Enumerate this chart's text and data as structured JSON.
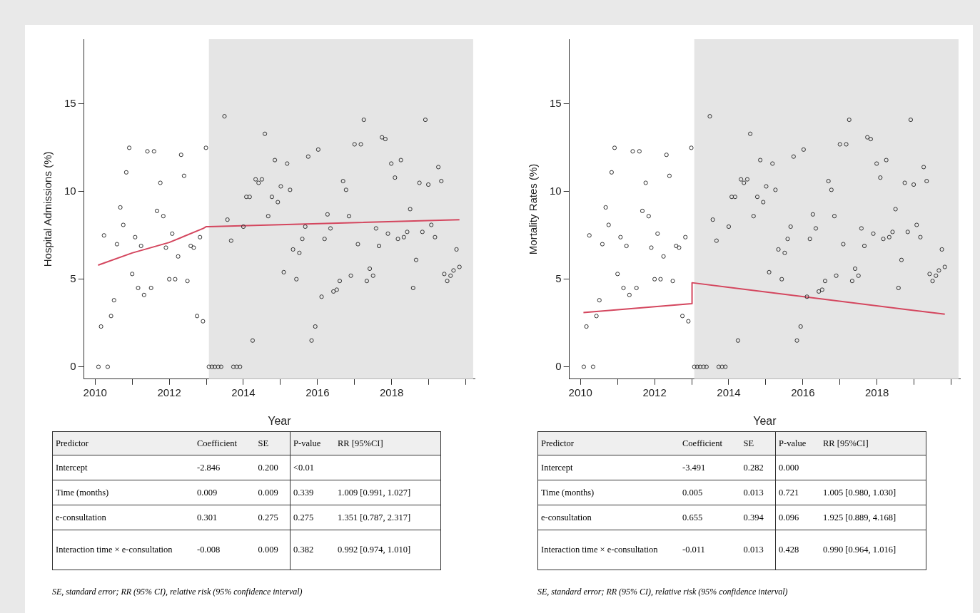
{
  "chart_data": [
    {
      "type": "scatter",
      "xlabel": "Year",
      "ylabel": "Hospital Admissions (%)",
      "xlim": [
        2009.7,
        2020.24
      ],
      "ylim": [
        -0.7,
        18.7
      ],
      "xticks": [
        2010,
        {
          "value": 2011,
          "label": null
        },
        2012,
        {
          "value": 2013,
          "label": null
        },
        2014,
        {
          "value": 2015,
          "label": null
        },
        2016,
        {
          "value": 2017,
          "label": null
        },
        2018,
        {
          "value": 2019,
          "label": null
        },
        {
          "value": 2020,
          "label": null
        }
      ],
      "yticks": [
        0,
        5,
        10,
        15
      ],
      "grid": false,
      "legend": false,
      "bands": [
        {
          "axis": "x",
          "from": 2013.07,
          "to": 2020.2,
          "color": "#e5e5e5"
        }
      ],
      "series": [
        {
          "type": "scatter",
          "marker": "circle",
          "color": "#333333",
          "x": [
            2010.09,
            2010.16,
            2010.24,
            2010.34,
            2010.43,
            2010.51,
            2010.59,
            2010.68,
            2010.76,
            2010.84,
            2010.92,
            2011.0,
            2011.08,
            2011.16,
            2011.24,
            2011.32,
            2011.41,
            2011.51,
            2011.59,
            2011.67,
            2011.76,
            2011.84,
            2011.91,
            2012.0,
            2012.08,
            2012.16,
            2012.24,
            2012.32,
            2012.4,
            2012.49,
            2012.58,
            2012.66,
            2012.75,
            2012.83,
            2012.91,
            2012.99,
            2013.07,
            2013.15,
            2013.23,
            2013.32,
            2013.4,
            2013.49,
            2013.57,
            2013.67,
            2013.73,
            2013.82,
            2013.91,
            2014.0,
            2014.08,
            2014.17,
            2014.25,
            2014.33,
            2014.41,
            2014.5,
            2014.58,
            2014.67,
            2014.77,
            2014.85,
            2014.93,
            2015.01,
            2015.09,
            2015.18,
            2015.26,
            2015.34,
            2015.43,
            2015.51,
            2015.59,
            2015.67,
            2015.75,
            2015.84,
            2015.94,
            2016.02,
            2016.11,
            2016.19,
            2016.27,
            2016.35,
            2016.43,
            2016.52,
            2016.6,
            2016.69,
            2016.77,
            2016.85,
            2016.9,
            2017.0,
            2017.09,
            2017.17,
            2017.25,
            2017.33,
            2017.41,
            2017.5,
            2017.58,
            2017.66,
            2017.74,
            2017.83,
            2017.9,
            2017.99,
            2018.09,
            2018.17,
            2018.25,
            2018.33,
            2018.42,
            2018.5,
            2018.58,
            2018.66,
            2018.75,
            2018.83,
            2018.91,
            2018.99,
            2019.07,
            2019.17,
            2019.26,
            2019.34,
            2019.42,
            2019.5,
            2019.59,
            2019.67,
            2019.75,
            2019.83
          ],
          "values": [
            0,
            2.3,
            7.5,
            0,
            2.9,
            3.8,
            7.0,
            9.1,
            8.1,
            11.1,
            12.5,
            5.3,
            7.4,
            4.5,
            6.9,
            4.1,
            12.3,
            4.5,
            12.3,
            8.9,
            10.5,
            8.6,
            6.8,
            5.0,
            7.6,
            5.0,
            6.3,
            12.1,
            10.9,
            4.9,
            6.9,
            6.8,
            2.9,
            7.4,
            2.6,
            12.5,
            0,
            0,
            0,
            0,
            0,
            14.3,
            8.4,
            7.2,
            0,
            0,
            0,
            8.0,
            9.7,
            9.7,
            1.5,
            10.7,
            10.5,
            10.7,
            13.3,
            8.6,
            9.7,
            11.8,
            9.4,
            10.3,
            5.4,
            11.6,
            10.1,
            6.7,
            5.0,
            6.5,
            7.3,
            8.0,
            12.0,
            1.5,
            2.3,
            12.4,
            4.0,
            7.3,
            8.7,
            7.9,
            4.3,
            4.4,
            4.9,
            10.6,
            10.1,
            8.6,
            5.2,
            12.7,
            7.0,
            12.7,
            14.1,
            4.9,
            5.6,
            5.2,
            7.9,
            6.9,
            13.1,
            13.0,
            7.6,
            11.6,
            10.8,
            7.3,
            11.8,
            7.4,
            7.7,
            9.0,
            4.5,
            6.1,
            10.5,
            7.7,
            14.1,
            10.4,
            8.1,
            7.4,
            11.4,
            10.6,
            5.3,
            4.9,
            5.2,
            5.5,
            6.7,
            5.7
          ]
        },
        {
          "type": "line",
          "marker": "none",
          "color": "#d4465e",
          "x": [
            2010.08,
            2011.0,
            2012.0,
            2012.92,
            2013.0,
            2013.07,
            2019.83
          ],
          "values": [
            5.8,
            6.5,
            7.1,
            7.9,
            8.0,
            8.0,
            8.4
          ]
        }
      ],
      "annotations": [
        "Predictor",
        "Coefficient",
        "SE",
        "P-value",
        "RR [95%CI]",
        "Intercept",
        "-2.846",
        "0.200",
        "<0.01",
        "Time (months)",
        "0.009",
        "0.009",
        "0.339",
        "1.009 [0.991, 1.027]",
        "e-consultation",
        "0.301",
        "0.275",
        "0.275",
        "1.351 [0.787, 2.317]",
        "Interaction time × e-consultation",
        "-0.008",
        "0.009",
        "0.382",
        "0.992 [0.974, 1.010]",
        "SE, standard error; RR (95% CI), relative risk (95% confidence interval)"
      ]
    },
    {
      "type": "scatter",
      "xlabel": "Year",
      "ylabel": "Mortality Rates (%)",
      "xlim": [
        2009.7,
        2020.24
      ],
      "ylim": [
        -0.7,
        18.7
      ],
      "xticks": [
        2010,
        {
          "value": 2011,
          "label": null
        },
        2012,
        {
          "value": 2013,
          "label": null
        },
        2014,
        {
          "value": 2015,
          "label": null
        },
        2016,
        {
          "value": 2017,
          "label": null
        },
        2018,
        {
          "value": 2019,
          "label": null
        },
        {
          "value": 2020,
          "label": null
        }
      ],
      "yticks": [
        0,
        5,
        10,
        15
      ],
      "grid": false,
      "legend": false,
      "bands": [
        {
          "axis": "x",
          "from": 2013.07,
          "to": 2020.2,
          "color": "#e5e5e5"
        }
      ],
      "series": [
        {
          "type": "scatter",
          "marker": "circle",
          "color": "#333333",
          "x": [
            2010.09,
            2010.16,
            2010.24,
            2010.34,
            2010.43,
            2010.51,
            2010.59,
            2010.68,
            2010.76,
            2010.84,
            2010.92,
            2011.0,
            2011.08,
            2011.16,
            2011.24,
            2011.32,
            2011.41,
            2011.51,
            2011.59,
            2011.67,
            2011.76,
            2011.84,
            2011.91,
            2012.0,
            2012.08,
            2012.16,
            2012.24,
            2012.32,
            2012.4,
            2012.49,
            2012.58,
            2012.66,
            2012.75,
            2012.83,
            2012.91,
            2012.99,
            2013.07,
            2013.15,
            2013.23,
            2013.32,
            2013.4,
            2013.49,
            2013.57,
            2013.67,
            2013.73,
            2013.82,
            2013.91,
            2014.0,
            2014.08,
            2014.17,
            2014.25,
            2014.33,
            2014.41,
            2014.5,
            2014.58,
            2014.67,
            2014.77,
            2014.85,
            2014.93,
            2015.01,
            2015.09,
            2015.18,
            2015.26,
            2015.34,
            2015.43,
            2015.51,
            2015.59,
            2015.67,
            2015.75,
            2015.84,
            2015.94,
            2016.02,
            2016.11,
            2016.19,
            2016.27,
            2016.35,
            2016.43,
            2016.52,
            2016.6,
            2016.69,
            2016.77,
            2016.85,
            2016.9,
            2017.0,
            2017.09,
            2017.17,
            2017.25,
            2017.33,
            2017.41,
            2017.5,
            2017.58,
            2017.66,
            2017.74,
            2017.83,
            2017.9,
            2017.99,
            2018.09,
            2018.17,
            2018.25,
            2018.33,
            2018.42,
            2018.5,
            2018.58,
            2018.66,
            2018.75,
            2018.83,
            2018.91,
            2018.99,
            2019.07,
            2019.17,
            2019.26,
            2019.34,
            2019.42,
            2019.5,
            2019.59,
            2019.67,
            2019.75,
            2019.83
          ],
          "values": [
            0,
            2.3,
            7.5,
            0,
            2.9,
            3.8,
            7.0,
            9.1,
            8.1,
            11.1,
            12.5,
            5.3,
            7.4,
            4.5,
            6.9,
            4.1,
            12.3,
            4.5,
            12.3,
            8.9,
            10.5,
            8.6,
            6.8,
            5.0,
            7.6,
            5.0,
            6.3,
            12.1,
            10.9,
            4.9,
            6.9,
            6.8,
            2.9,
            7.4,
            2.6,
            12.5,
            0,
            0,
            0,
            0,
            0,
            14.3,
            8.4,
            7.2,
            0,
            0,
            0,
            8.0,
            9.7,
            9.7,
            1.5,
            10.7,
            10.5,
            10.7,
            13.3,
            8.6,
            9.7,
            11.8,
            9.4,
            10.3,
            5.4,
            11.6,
            10.1,
            6.7,
            5.0,
            6.5,
            7.3,
            8.0,
            12.0,
            1.5,
            2.3,
            12.4,
            4.0,
            7.3,
            8.7,
            7.9,
            4.3,
            4.4,
            4.9,
            10.6,
            10.1,
            8.6,
            5.2,
            12.7,
            7.0,
            12.7,
            14.1,
            4.9,
            5.6,
            5.2,
            7.9,
            6.9,
            13.1,
            13.0,
            7.6,
            11.6,
            10.8,
            7.3,
            11.8,
            7.4,
            7.7,
            9.0,
            4.5,
            6.1,
            10.5,
            7.7,
            14.1,
            10.4,
            8.1,
            7.4,
            11.4,
            10.6,
            5.3,
            4.9,
            5.2,
            5.5,
            6.7,
            5.7
          ]
        },
        {
          "type": "line",
          "marker": "none",
          "color": "#d4465e",
          "x": [
            2010.08,
            2013.0,
            2013.01,
            2019.83
          ],
          "values": [
            3.1,
            3.6,
            4.8,
            3.0
          ]
        }
      ],
      "annotations": [
        "Predictor",
        "Coefficient",
        "SE",
        "P-value",
        "RR [95%CI]",
        "Intercept",
        "-3.491",
        "0.282",
        "0.000",
        "Time (months)",
        "0.005",
        "0.013",
        "0.721",
        "1.005 [0.980, 1.030]",
        "e-consultation",
        "0.655",
        "0.394",
        "0.096",
        "1.925 [0.889, 4.168]",
        "Interaction time × e-consultation",
        "-0.011",
        "0.013",
        "0.428",
        "0.990 [0.964, 1.016]",
        "SE, standard error; RR (95% CI), relative risk (95% confidence interval)"
      ]
    }
  ]
}
